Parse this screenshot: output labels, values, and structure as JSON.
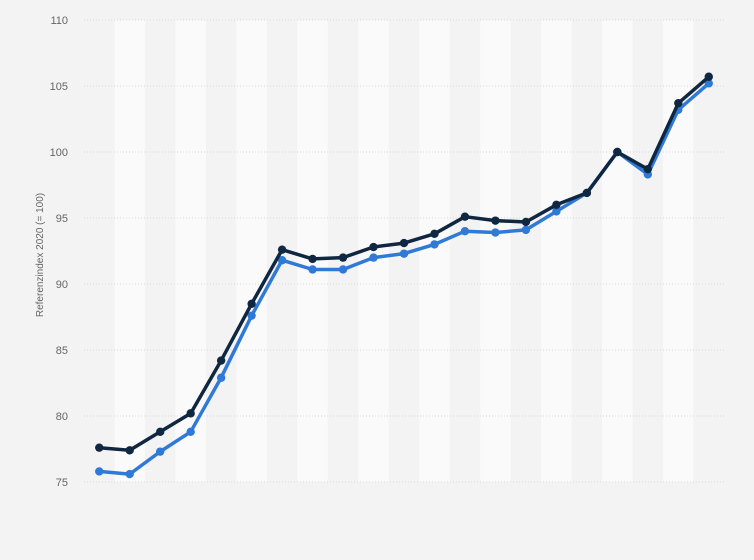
{
  "chart_data": {
    "type": "line",
    "title": "",
    "xlabel": "",
    "ylabel": "Referenzindex 2020 (= 100)",
    "ylim": [
      75,
      110
    ],
    "yticks": [
      75,
      80,
      85,
      90,
      95,
      100,
      105,
      110
    ],
    "x": [
      1,
      2,
      3,
      4,
      5,
      6,
      7,
      8,
      9,
      10,
      11,
      12,
      13,
      14,
      15,
      16,
      17,
      18,
      19,
      20,
      21
    ],
    "grid": "horizontal",
    "legend": "none",
    "series": [
      {
        "color": "#0f2740",
        "values": [
          77.6,
          77.4,
          78.8,
          80.2,
          84.2,
          88.5,
          92.6,
          91.9,
          92.0,
          92.8,
          93.1,
          93.8,
          95.1,
          94.8,
          94.7,
          96.0,
          96.9,
          100.0,
          98.7,
          103.7,
          105.7
        ]
      },
      {
        "color": "#2f7ad6",
        "values": [
          75.8,
          75.6,
          77.3,
          78.8,
          82.9,
          87.6,
          91.8,
          91.1,
          91.1,
          92.0,
          92.3,
          93.0,
          94.0,
          93.9,
          94.1,
          95.5,
          96.9,
          100.0,
          98.3,
          103.2,
          105.2
        ]
      }
    ]
  }
}
